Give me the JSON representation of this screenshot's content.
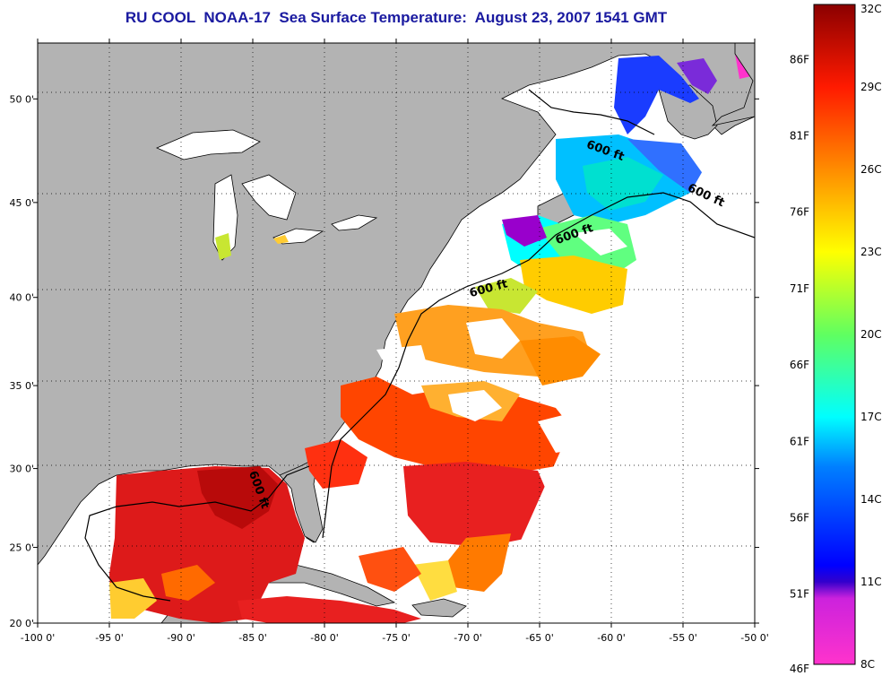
{
  "title": "RU COOL  NOAA-17  Sea Surface Temperature:  August 23, 2007 1541 GMT",
  "map": {
    "lon_range": [
      -100,
      -50
    ],
    "lat_range": [
      20,
      52.5
    ],
    "x_ticks": [
      "-100 0'",
      "-95 0'",
      "-90 0'",
      "-85 0'",
      "-80 0'",
      "-75 0'",
      "-70 0'",
      "-65 0'",
      "-60 0'",
      "-55 0'",
      "-50 0'"
    ],
    "y_ticks": [
      "50 0'",
      "45 0'",
      "40 0'",
      "35 0'",
      "30 0'",
      "25 0'",
      "20 0'"
    ],
    "grid": "dotted",
    "land_color": "#b3b3b3",
    "cloud_color": "#ffffff",
    "contour_label": "600 ft",
    "contour_labels": [
      {
        "text": "600 ft",
        "lon": -60.5,
        "lat": 47.4
      },
      {
        "text": "600 ft",
        "lon": -53.5,
        "lat": 45.2
      },
      {
        "text": "600 ft",
        "lon": -62.5,
        "lat": 43.2
      },
      {
        "text": "600 ft",
        "lon": -68.5,
        "lat": 40.3
      },
      {
        "text": "600 ft",
        "lon": -84.8,
        "lat": 28.6
      }
    ]
  },
  "colorbar": {
    "celsius_labels": [
      "32C",
      "29C",
      "26C",
      "23C",
      "20C",
      "17C",
      "14C",
      "11C",
      "8C"
    ],
    "fahrenheit_labels": [
      "86F",
      "81F",
      "76F",
      "71F",
      "66F",
      "61F",
      "56F",
      "51F",
      "46F"
    ],
    "colors": [
      "#8b0000",
      "#ff0000",
      "#ff8c00",
      "#ffff00",
      "#7fff00",
      "#00ffff",
      "#0066ff",
      "#0000ff",
      "#9900cc",
      "#ff33cc"
    ]
  }
}
